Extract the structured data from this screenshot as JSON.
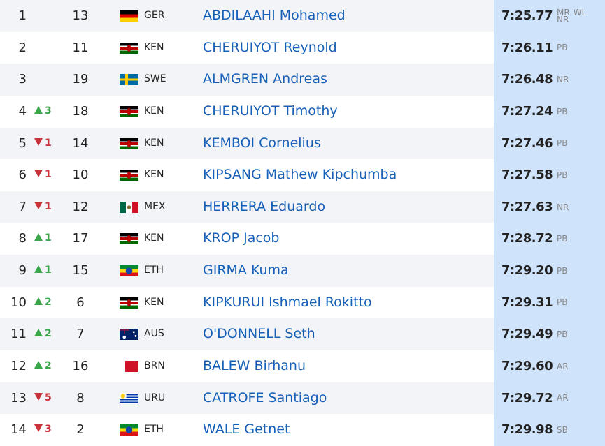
{
  "results": [
    {
      "rank": "1",
      "change": null,
      "bib": "13",
      "country": "GER",
      "name": "ABDILAAHI Mohamed",
      "time": "7:25.77",
      "records": [
        "MR",
        "WL",
        "NR"
      ]
    },
    {
      "rank": "2",
      "change": null,
      "bib": "11",
      "country": "KEN",
      "name": "CHERUIYOT Reynold",
      "time": "7:26.11",
      "records": [
        "PB"
      ]
    },
    {
      "rank": "3",
      "change": null,
      "bib": "19",
      "country": "SWE",
      "name": "ALMGREN Andreas",
      "time": "7:26.48",
      "records": [
        "NR"
      ]
    },
    {
      "rank": "4",
      "change": {
        "trend": "up",
        "value": "3"
      },
      "bib": "18",
      "country": "KEN",
      "name": "CHERUIYOT Timothy",
      "time": "7:27.24",
      "records": [
        "PB"
      ]
    },
    {
      "rank": "5",
      "change": {
        "trend": "down",
        "value": "1"
      },
      "bib": "14",
      "country": "KEN",
      "name": "KEMBOI Cornelius",
      "time": "7:27.46",
      "records": [
        "PB"
      ]
    },
    {
      "rank": "6",
      "change": {
        "trend": "down",
        "value": "1"
      },
      "bib": "10",
      "country": "KEN",
      "name": "KIPSANG Mathew Kipchumba",
      "time": "7:27.58",
      "records": [
        "PB"
      ]
    },
    {
      "rank": "7",
      "change": {
        "trend": "down",
        "value": "1"
      },
      "bib": "12",
      "country": "MEX",
      "name": "HERRERA Eduardo",
      "time": "7:27.63",
      "records": [
        "NR"
      ]
    },
    {
      "rank": "8",
      "change": {
        "trend": "up",
        "value": "1"
      },
      "bib": "17",
      "country": "KEN",
      "name": "KROP Jacob",
      "time": "7:28.72",
      "records": [
        "PB"
      ]
    },
    {
      "rank": "9",
      "change": {
        "trend": "up",
        "value": "1"
      },
      "bib": "15",
      "country": "ETH",
      "name": "GIRMA Kuma",
      "time": "7:29.20",
      "records": [
        "PB"
      ]
    },
    {
      "rank": "10",
      "change": {
        "trend": "up",
        "value": "2"
      },
      "bib": "6",
      "country": "KEN",
      "name": "KIPKURUI Ishmael Rokitto",
      "time": "7:29.31",
      "records": [
        "PB"
      ]
    },
    {
      "rank": "11",
      "change": {
        "trend": "up",
        "value": "2"
      },
      "bib": "7",
      "country": "AUS",
      "name": "O'DONNELL Seth",
      "time": "7:29.49",
      "records": [
        "PB"
      ]
    },
    {
      "rank": "12",
      "change": {
        "trend": "up",
        "value": "2"
      },
      "bib": "16",
      "country": "BRN",
      "name": "BALEW Birhanu",
      "time": "7:29.60",
      "records": [
        "AR"
      ]
    },
    {
      "rank": "13",
      "change": {
        "trend": "down",
        "value": "5"
      },
      "bib": "8",
      "country": "URU",
      "name": "CATROFE Santiago",
      "time": "7:29.72",
      "records": [
        "AR"
      ]
    },
    {
      "rank": "14",
      "change": {
        "trend": "down",
        "value": "3"
      },
      "bib": "2",
      "country": "ETH",
      "name": "WALE Getnet",
      "time": "7:29.98",
      "records": [
        "SB"
      ]
    }
  ]
}
